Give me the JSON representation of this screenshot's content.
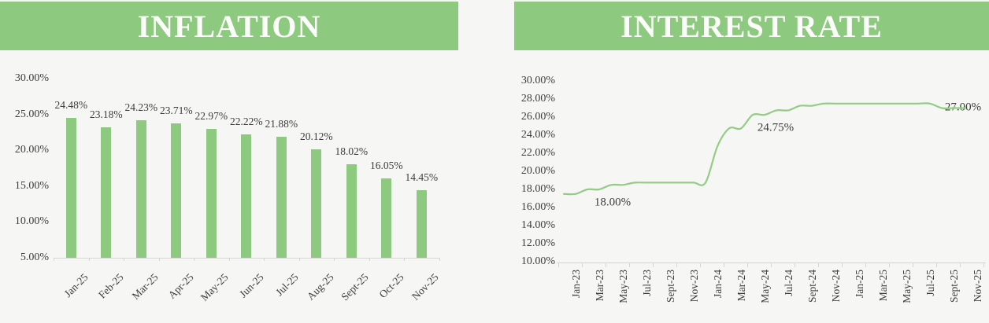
{
  "theme": {
    "background": "#f6f6f5",
    "header_bg": "#8dc97e",
    "header_text": "#fcfcfa",
    "bar_color": "#8dc97e",
    "line_color": "#95cc85",
    "axis_color": "#d6d6d6",
    "label_color": "#3d3d3d"
  },
  "chart_data": [
    {
      "type": "bar",
      "title": "INFLATION",
      "categories": [
        "Jan-25",
        "Feb-25",
        "Mar-25",
        "Apr-25",
        "May-25",
        "Jun-25",
        "Jul-25",
        "Aug-25",
        "Sept-25",
        "Oct-25",
        "Nov-25"
      ],
      "values": [
        24.48,
        23.18,
        24.23,
        23.71,
        22.97,
        22.22,
        21.88,
        20.12,
        18.02,
        16.05,
        14.45
      ],
      "data_labels": [
        "24.48%",
        "23.18%",
        "24.23%",
        "23.71%",
        "22.97%",
        "22.22%",
        "21.88%",
        "20.12%",
        "18.02%",
        "16.05%",
        "14.45%"
      ],
      "yticks": [
        30,
        25,
        20,
        15,
        10,
        5
      ],
      "ytick_labels": [
        "30.00%",
        "25.00%",
        "20.00%",
        "15.00%",
        "10.00%",
        "5.00%"
      ],
      "xlabel": "",
      "ylabel": "",
      "ylim": [
        5,
        30
      ],
      "grid": false,
      "legend": "none"
    },
    {
      "type": "line",
      "title": "INTEREST RATE",
      "x": [
        "Jan-23",
        "Feb-23",
        "Mar-23",
        "Apr-23",
        "May-23",
        "Jun-23",
        "Jul-23",
        "Aug-23",
        "Sept-23",
        "Oct-23",
        "Nov-23",
        "Dec-23",
        "Jan-24",
        "Feb-24",
        "Mar-24",
        "Apr-24",
        "May-24",
        "Jun-24",
        "Jul-24",
        "Aug-24",
        "Sept-24",
        "Oct-24",
        "Nov-24",
        "Dec-24",
        "Jan-25",
        "Feb-25",
        "Mar-25",
        "Apr-25",
        "May-25",
        "Jun-25",
        "Jul-25",
        "Aug-25",
        "Sept-25",
        "Oct-25",
        "Nov-25"
      ],
      "values": [
        17.5,
        17.5,
        18.0,
        18.0,
        18.5,
        18.5,
        18.75,
        18.75,
        18.75,
        18.75,
        18.75,
        18.75,
        18.75,
        22.75,
        24.75,
        24.75,
        26.25,
        26.25,
        26.75,
        26.75,
        27.25,
        27.25,
        27.5,
        27.5,
        27.5,
        27.5,
        27.5,
        27.5,
        27.5,
        27.5,
        27.5,
        27.5,
        27.0,
        27.0,
        27.0
      ],
      "xtick_labels": [
        "Jan-23",
        "Mar-23",
        "May-23",
        "Jul-23",
        "Sept-23",
        "Nov-23",
        "Jan-24",
        "Mar-24",
        "May-24",
        "Jul-24",
        "Sept-24",
        "Nov-24",
        "Jan-25",
        "Mar-25",
        "May-25",
        "Jul-25",
        "Sept-25",
        "Nov-25"
      ],
      "yticks": [
        30,
        28,
        26,
        24,
        22,
        20,
        18,
        16,
        14,
        12,
        10
      ],
      "ytick_labels": [
        "30.00%",
        "28.00%",
        "26.00%",
        "24.00%",
        "22.00%",
        "20.00%",
        "18.00%",
        "16.00%",
        "14.00%",
        "12.00%",
        "10.00%"
      ],
      "xlabel": "",
      "ylabel": "",
      "ylim": [
        10,
        30
      ],
      "grid": false,
      "legend": "none",
      "annotations": [
        {
          "text": "18.00%",
          "anchor_month": "Apr-23"
        },
        {
          "text": "24.75%",
          "anchor_month": "Apr-24"
        },
        {
          "text": "27.00%",
          "anchor_month": "Nov-25"
        }
      ]
    }
  ]
}
